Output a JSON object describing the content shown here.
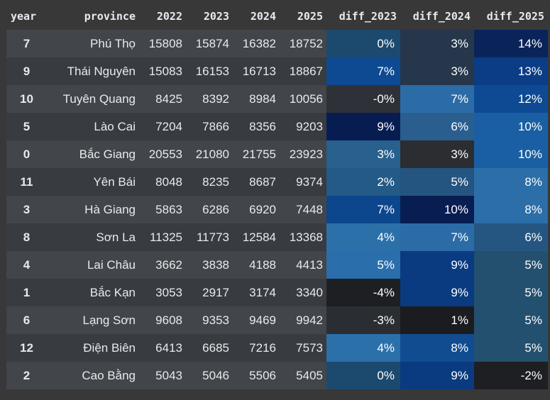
{
  "headers": {
    "year": "year",
    "province": "province",
    "y2022": "2022",
    "y2023": "2023",
    "y2024": "2024",
    "y2025": "2025",
    "diff_2023": "diff_2023",
    "diff_2024": "diff_2024",
    "diff_2025": "diff_2025"
  },
  "colors": {
    "page_background": "#383838",
    "row_odd": "#42454a",
    "row_even": "#383b40",
    "text": "#e8eaed"
  },
  "rows": [
    {
      "idx": "7",
      "province": "Phú Thọ",
      "y2022": "15808",
      "y2023": "15874",
      "y2024": "16382",
      "y2025": "18752",
      "d2023": "0%",
      "d2024": "3%",
      "d2025": "14%",
      "c2023": "#1c4a6e",
      "c2024": "#26364b",
      "c2025": "#0a245a"
    },
    {
      "idx": "9",
      "province": "Thái Nguyên",
      "y2022": "15083",
      "y2023": "16153",
      "y2024": "16713",
      "y2025": "18867",
      "d2023": "7%",
      "d2024": "3%",
      "d2025": "13%",
      "c2023": "#0d4a92",
      "c2024": "#26364b",
      "c2025": "#0b3d86"
    },
    {
      "idx": "10",
      "province": "Tuyên Quang",
      "y2022": "8425",
      "y2023": "8392",
      "y2024": "8984",
      "y2025": "10056",
      "d2023": "-0%",
      "d2024": "7%",
      "d2025": "12%",
      "c2023": "#2e3238",
      "c2024": "#2b6ca6",
      "c2025": "#0d4a93"
    },
    {
      "idx": "5",
      "province": "Lào Cai",
      "y2022": "7204",
      "y2023": "7866",
      "y2024": "8356",
      "y2025": "9203",
      "d2023": "9%",
      "d2024": "6%",
      "d2025": "10%",
      "c2023": "#071d52",
      "c2024": "#2a5e8f",
      "c2025": "#1a5fa3"
    },
    {
      "idx": "0",
      "province": "Bắc Giang",
      "y2022": "20553",
      "y2023": "21080",
      "y2024": "21755",
      "y2025": "23923",
      "d2023": "3%",
      "d2024": "3%",
      "d2025": "10%",
      "c2023": "#28608e",
      "c2024": "#2b2d31",
      "c2025": "#1a5fa3"
    },
    {
      "idx": "11",
      "province": "Yên Bái",
      "y2022": "8048",
      "y2023": "8235",
      "y2024": "8687",
      "y2025": "9374",
      "d2023": "2%",
      "d2024": "5%",
      "d2025": "8%",
      "c2023": "#235a86",
      "c2024": "#245580",
      "c2025": "#2b6ea8"
    },
    {
      "idx": "3",
      "province": "Hà Giang",
      "y2022": "5863",
      "y2023": "6286",
      "y2024": "6920",
      "y2025": "7448",
      "d2023": "7%",
      "d2024": "10%",
      "d2025": "8%",
      "c2023": "#0c468c",
      "c2024": "#081d52",
      "c2025": "#2b6ea8"
    },
    {
      "idx": "8",
      "province": "Sơn La",
      "y2022": "11325",
      "y2023": "11773",
      "y2024": "12584",
      "y2025": "13368",
      "d2023": "4%",
      "d2024": "7%",
      "d2025": "6%",
      "c2023": "#2c70aa",
      "c2024": "#2b6ca6",
      "c2025": "#255682"
    },
    {
      "idx": "4",
      "province": "Lai Châu",
      "y2022": "3662",
      "y2023": "3838",
      "y2024": "4188",
      "y2025": "4413",
      "d2023": "5%",
      "d2024": "9%",
      "d2025": "5%",
      "c2023": "#2a6eab",
      "c2024": "#0a3b80",
      "c2025": "#24506f"
    },
    {
      "idx": "1",
      "province": "Bắc Kạn",
      "y2022": "3053",
      "y2023": "2917",
      "y2024": "3174",
      "y2025": "3340",
      "d2023": "-4%",
      "d2024": "9%",
      "d2025": "5%",
      "c2023": "#1d1f23",
      "c2024": "#0a3b80",
      "c2025": "#24506f"
    },
    {
      "idx": "6",
      "province": "Lạng Sơn",
      "y2022": "9608",
      "y2023": "9353",
      "y2024": "9469",
      "y2025": "9942",
      "d2023": "-3%",
      "d2024": "1%",
      "d2025": "5%",
      "c2023": "#2a2d32",
      "c2024": "#1b1c20",
      "c2025": "#24506f"
    },
    {
      "idx": "12",
      "province": "Điện Biên",
      "y2022": "6413",
      "y2023": "6685",
      "y2024": "7216",
      "y2025": "7573",
      "d2023": "4%",
      "d2024": "8%",
      "d2025": "5%",
      "c2023": "#2c70aa",
      "c2024": "#114c91",
      "c2025": "#24506f"
    },
    {
      "idx": "2",
      "province": "Cao Bằng",
      "y2022": "5043",
      "y2023": "5046",
      "y2024": "5506",
      "y2025": "5405",
      "d2023": "0%",
      "d2024": "9%",
      "d2025": "-2%",
      "c2023": "#1c4a6e",
      "c2024": "#0a3b80",
      "c2025": "#1e1f23"
    }
  ]
}
